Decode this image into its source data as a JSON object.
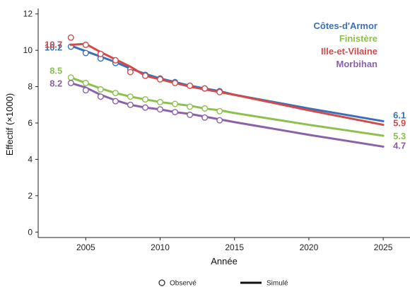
{
  "chart_data": {
    "type": "line",
    "xlabel": "Année",
    "ylabel": "Effectif (×1000)",
    "xlim": [
      2001.8,
      2026.8
    ],
    "ylim": [
      -0.3,
      12.3
    ],
    "xticks": [
      2005,
      2010,
      2015,
      2020,
      2025
    ],
    "yticks": [
      0,
      2,
      4,
      6,
      8,
      10,
      12
    ],
    "grid": false,
    "legend": {
      "placement": "bottom",
      "observed_label": "Observé",
      "simulated_label": "Simulé"
    },
    "series": [
      {
        "name": "Côtes-d'Armor",
        "color": "#3b6fb6",
        "start_label": "10.2",
        "end_label": "6.1",
        "observed": {
          "x": [
            2004,
            2005,
            2006,
            2007,
            2008,
            2009,
            2010,
            2011,
            2012,
            2013,
            2014
          ],
          "y": [
            10.2,
            9.85,
            9.55,
            9.3,
            8.95,
            8.65,
            8.45,
            8.25,
            8.05,
            7.9,
            7.75
          ]
        },
        "simulated": {
          "x": [
            2004,
            2005,
            2006,
            2007,
            2008,
            2009,
            2010,
            2011,
            2012,
            2013,
            2014,
            2015,
            2020,
            2025
          ],
          "y": [
            10.25,
            9.95,
            9.65,
            9.35,
            9.0,
            8.7,
            8.45,
            8.25,
            8.05,
            7.9,
            7.75,
            7.55,
            6.8,
            6.1
          ]
        }
      },
      {
        "name": "Finistère",
        "color": "#8cc14e",
        "start_label": "8.5",
        "end_label": "5.3",
        "observed": {
          "x": [
            2004,
            2005,
            2006,
            2007,
            2008,
            2009,
            2010,
            2011,
            2012,
            2013,
            2014
          ],
          "y": [
            8.5,
            8.2,
            7.85,
            7.65,
            7.45,
            7.3,
            7.15,
            7.05,
            6.9,
            6.8,
            6.65
          ]
        },
        "simulated": {
          "x": [
            2004,
            2005,
            2006,
            2007,
            2008,
            2009,
            2010,
            2011,
            2012,
            2013,
            2014,
            2015,
            2020,
            2025
          ],
          "y": [
            8.5,
            8.2,
            7.9,
            7.65,
            7.45,
            7.3,
            7.15,
            7.05,
            6.95,
            6.8,
            6.7,
            6.55,
            5.9,
            5.3
          ]
        }
      },
      {
        "name": "Ille-et-Vilaine",
        "color": "#d24b4b",
        "start_label": "10.7",
        "end_label": "5.9",
        "observed": {
          "x": [
            2004,
            2005,
            2006,
            2007,
            2008,
            2009,
            2010,
            2011,
            2012,
            2013,
            2014
          ],
          "y": [
            10.7,
            10.3,
            9.8,
            9.45,
            8.8,
            8.6,
            8.4,
            8.2,
            8.05,
            7.9,
            7.7
          ]
        },
        "simulated": {
          "x": [
            2004,
            2005,
            2006,
            2007,
            2008,
            2009,
            2010,
            2011,
            2012,
            2013,
            2014,
            2015,
            2020,
            2025
          ],
          "y": [
            10.3,
            10.35,
            9.9,
            9.5,
            9.1,
            8.6,
            8.4,
            8.2,
            8.0,
            7.85,
            7.7,
            7.55,
            6.7,
            5.9
          ]
        }
      },
      {
        "name": "Morbihan",
        "color": "#8b62a8",
        "start_label": "8.2",
        "end_label": "4.7",
        "observed": {
          "x": [
            2004,
            2005,
            2006,
            2007,
            2008,
            2009,
            2010,
            2011,
            2012,
            2013,
            2014
          ],
          "y": [
            8.2,
            7.8,
            7.45,
            7.2,
            7.0,
            6.85,
            6.75,
            6.6,
            6.45,
            6.3,
            6.15
          ]
        },
        "simulated": {
          "x": [
            2004,
            2005,
            2006,
            2007,
            2008,
            2009,
            2010,
            2011,
            2012,
            2013,
            2014,
            2015,
            2020,
            2025
          ],
          "y": [
            8.2,
            7.95,
            7.55,
            7.25,
            7.0,
            6.85,
            6.75,
            6.6,
            6.5,
            6.35,
            6.2,
            6.05,
            5.35,
            4.7
          ]
        }
      }
    ]
  }
}
